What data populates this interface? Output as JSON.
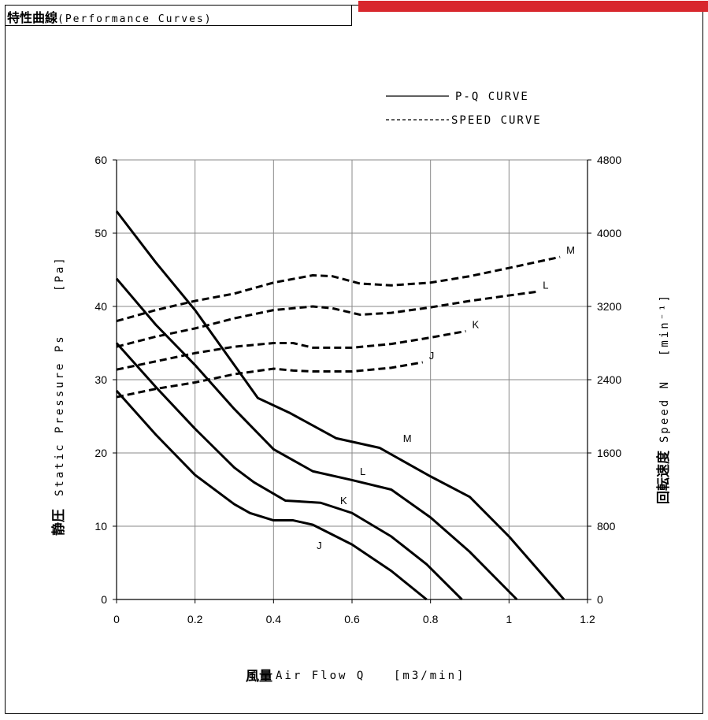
{
  "header": {
    "title": "特性曲線",
    "subtitle": "(Performance Curves)"
  },
  "colors": {
    "accent": "#d8272d",
    "line": "#000000",
    "grid": "#888888"
  },
  "legend": {
    "pq": "P-Q CURVE",
    "speed": "SPEED CURVE"
  },
  "axes": {
    "y_left_jp": "静圧",
    "y_left_en": "Static Pressure Ps",
    "y_left_unit": "[Pa]",
    "y_right_jp": "回転速度",
    "y_right_en": "Speed N",
    "y_right_unit": "[min⁻¹]",
    "x_jp": "風量",
    "x_en": "Air Flow Q",
    "x_unit": "[m3/min]"
  },
  "chart_data": {
    "type": "line",
    "xlim": [
      0,
      1.2
    ],
    "ylim": [
      0,
      60
    ],
    "y2lim": [
      0,
      4800
    ],
    "x_ticks": [
      "0",
      "0.2",
      "0.4",
      "0.6",
      "0.8",
      "1",
      "1.2"
    ],
    "y_ticks": [
      "0",
      "10",
      "20",
      "30",
      "40",
      "50",
      "60"
    ],
    "y2_ticks": [
      "0",
      "800",
      "1600",
      "2400",
      "3200",
      "4000",
      "4800"
    ],
    "grid": true,
    "legend_position": "top-right",
    "pq_series": [
      {
        "name": "M",
        "points": [
          [
            0,
            53
          ],
          [
            0.1,
            46
          ],
          [
            0.2,
            39.5
          ],
          [
            0.3,
            32
          ],
          [
            0.36,
            27.5
          ],
          [
            0.44,
            25.5
          ],
          [
            0.56,
            22
          ],
          [
            0.67,
            20.7
          ],
          [
            0.8,
            16.8
          ],
          [
            0.9,
            14
          ],
          [
            1.0,
            8.6
          ],
          [
            1.14,
            0
          ]
        ]
      },
      {
        "name": "L",
        "points": [
          [
            0,
            43.8
          ],
          [
            0.1,
            37.5
          ],
          [
            0.2,
            32
          ],
          [
            0.3,
            26
          ],
          [
            0.4,
            20.5
          ],
          [
            0.5,
            17.5
          ],
          [
            0.6,
            16.3
          ],
          [
            0.7,
            15
          ],
          [
            0.8,
            11.2
          ],
          [
            0.9,
            6.5
          ],
          [
            1.02,
            0
          ]
        ]
      },
      {
        "name": "K",
        "points": [
          [
            0,
            35
          ],
          [
            0.1,
            29
          ],
          [
            0.2,
            23.3
          ],
          [
            0.3,
            18
          ],
          [
            0.35,
            16
          ],
          [
            0.43,
            13.5
          ],
          [
            0.52,
            13.2
          ],
          [
            0.6,
            11.8
          ],
          [
            0.7,
            8.6
          ],
          [
            0.79,
            4.8
          ],
          [
            0.88,
            0
          ]
        ]
      },
      {
        "name": "J",
        "points": [
          [
            0,
            28.5
          ],
          [
            0.1,
            22.5
          ],
          [
            0.2,
            17
          ],
          [
            0.3,
            13
          ],
          [
            0.34,
            11.8
          ],
          [
            0.4,
            10.8
          ],
          [
            0.45,
            10.8
          ],
          [
            0.5,
            10.2
          ],
          [
            0.6,
            7.5
          ],
          [
            0.7,
            3.9
          ],
          [
            0.79,
            0
          ]
        ]
      }
    ],
    "speed_series": [
      {
        "name": "M",
        "points": [
          [
            0,
            3040
          ],
          [
            0.1,
            3160
          ],
          [
            0.2,
            3260
          ],
          [
            0.3,
            3340
          ],
          [
            0.4,
            3460
          ],
          [
            0.5,
            3540
          ],
          [
            0.55,
            3530
          ],
          [
            0.62,
            3450
          ],
          [
            0.7,
            3430
          ],
          [
            0.8,
            3460
          ],
          [
            0.9,
            3530
          ],
          [
            1.0,
            3620
          ],
          [
            1.13,
            3740
          ]
        ]
      },
      {
        "name": "L",
        "points": [
          [
            0,
            2760
          ],
          [
            0.1,
            2870
          ],
          [
            0.2,
            2960
          ],
          [
            0.3,
            3070
          ],
          [
            0.4,
            3160
          ],
          [
            0.5,
            3200
          ],
          [
            0.55,
            3180
          ],
          [
            0.62,
            3110
          ],
          [
            0.7,
            3130
          ],
          [
            0.8,
            3190
          ],
          [
            0.9,
            3260
          ],
          [
            1.0,
            3320
          ],
          [
            1.07,
            3360
          ]
        ]
      },
      {
        "name": "K",
        "points": [
          [
            0,
            2510
          ],
          [
            0.1,
            2600
          ],
          [
            0.2,
            2690
          ],
          [
            0.3,
            2760
          ],
          [
            0.4,
            2800
          ],
          [
            0.45,
            2800
          ],
          [
            0.5,
            2750
          ],
          [
            0.6,
            2750
          ],
          [
            0.7,
            2790
          ],
          [
            0.8,
            2860
          ],
          [
            0.89,
            2930
          ]
        ]
      },
      {
        "name": "J",
        "points": [
          [
            0,
            2210
          ],
          [
            0.1,
            2300
          ],
          [
            0.2,
            2370
          ],
          [
            0.3,
            2460
          ],
          [
            0.4,
            2520
          ],
          [
            0.45,
            2500
          ],
          [
            0.5,
            2490
          ],
          [
            0.6,
            2490
          ],
          [
            0.7,
            2530
          ],
          [
            0.78,
            2590
          ]
        ]
      }
    ]
  }
}
